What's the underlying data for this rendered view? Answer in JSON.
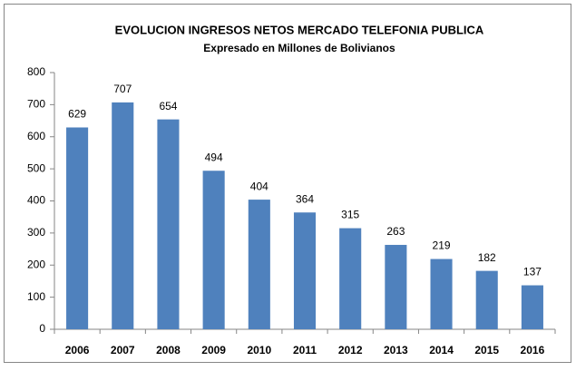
{
  "chart_data": {
    "type": "bar",
    "title": "EVOLUCION  INGRESOS NETOS  MERCADO TELEFONIA PUBLICA",
    "subtitle": "Expresado en Millones de Bolivianos",
    "categories": [
      "2006",
      "2007",
      "2008",
      "2009",
      "2010",
      "2011",
      "2012",
      "2013",
      "2014",
      "2015",
      "2016"
    ],
    "values": [
      629,
      707,
      654,
      494,
      404,
      364,
      315,
      263,
      219,
      182,
      137
    ],
    "color": "#4f81bd",
    "ylim": [
      0,
      800
    ],
    "yticks": [
      0,
      100,
      200,
      300,
      400,
      500,
      600,
      700,
      800
    ],
    "grid": false
  }
}
